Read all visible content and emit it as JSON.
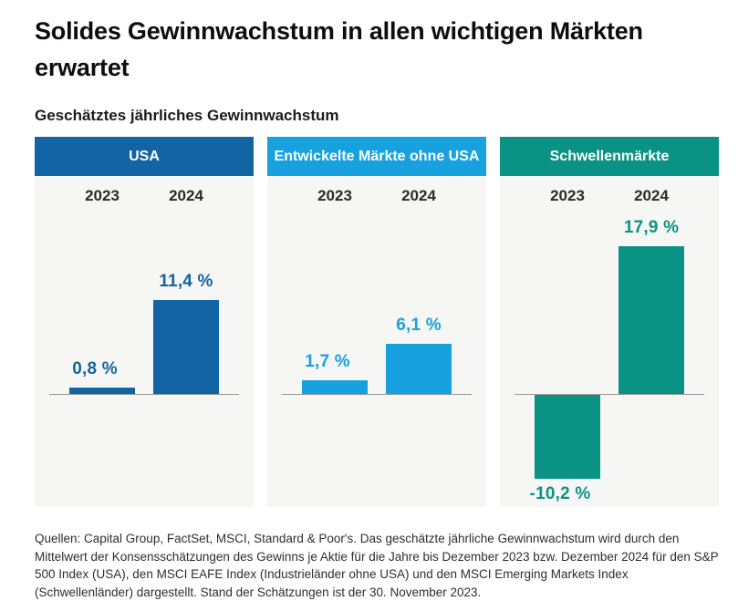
{
  "page": {
    "title": "Solides Gewinnwachstum in allen wichtigen Märkten erwartet",
    "subtitle": "Geschätztes jährliches Gewinnwachstum"
  },
  "panels": [
    {
      "label": "USA",
      "header_color": "#1264a4",
      "bar_color": "#1264a4",
      "years": [
        "2023",
        "2024"
      ],
      "values": [
        0.8,
        11.4
      ],
      "value_labels": [
        "0,8 %",
        "11,4 %"
      ]
    },
    {
      "label": "Entwickelte Märkte ohne USA",
      "header_color": "#17a2df",
      "bar_color": "#17a2df",
      "years": [
        "2023",
        "2024"
      ],
      "values": [
        1.7,
        6.1
      ],
      "value_labels": [
        "1,7 %",
        "6,1 %"
      ]
    },
    {
      "label": "Schwellenmärkte",
      "header_color": "#0a9384",
      "bar_color": "#0a9384",
      "years": [
        "2023",
        "2024"
      ],
      "values": [
        -10.2,
        17.9
      ],
      "value_labels": [
        "-10,2 %",
        "17,9 %"
      ]
    }
  ],
  "footer": {
    "text": "Quellen: Capital Group, FactSet, MSCI, Standard & Poor's. Das geschätzte jährliche Gewinnwachstum wird durch den Mittelwert der Konsensschätzungen des Gewinns je Aktie für die Jahre bis Dezember 2023 bzw. Dezember 2024 für den S&P 500 Index (USA), den MSCI EAFE Index (Industrieländer ohne USA) und den MSCI Emerging Markets Index (Schwellenländer) dargestellt. Stand der Schätzungen ist der 30. November 2023."
  },
  "chart_data": {
    "type": "bar",
    "title": "Solides Gewinnwachstum in allen wichtigen Märkten erwartet",
    "subtitle": "Geschätztes jährliches Gewinnwachstum",
    "categories": [
      "2023",
      "2024"
    ],
    "series": [
      {
        "name": "USA",
        "values": [
          0.8,
          11.4
        ],
        "color": "#1264a4"
      },
      {
        "name": "Entwickelte Märkte ohne USA",
        "values": [
          1.7,
          6.1
        ],
        "color": "#17a2df"
      },
      {
        "name": "Schwellenmärkte",
        "values": [
          -10.2,
          17.9
        ],
        "color": "#0a9384"
      }
    ],
    "value_labels": [
      [
        "0,8 %",
        "11,4 %"
      ],
      [
        "1,7 %",
        "6,1 %"
      ],
      [
        "-10,2 %",
        "17,9 %"
      ]
    ],
    "unit": "%",
    "ylim": [
      -12,
      20
    ],
    "baseline": 0,
    "grid": false,
    "legend_position": "none",
    "layout": "three-panel small multiples, zero baseline per panel, data labels at bar ends"
  }
}
